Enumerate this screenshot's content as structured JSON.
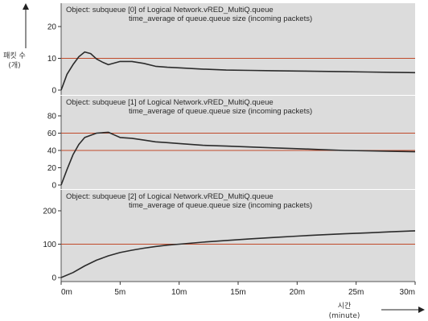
{
  "chart_data": {
    "type": "line",
    "y_axis_label": [
      "패킷 수",
      "(개)"
    ],
    "x_axis_label": [
      "시간",
      "(minute)"
    ],
    "x_ticks": [
      "0m",
      "5m",
      "10m",
      "15m",
      "20m",
      "25m",
      "30m"
    ],
    "xlim": [
      0,
      30
    ],
    "grid": false,
    "colors": {
      "plot_background": "#dcdcdc",
      "line": "#2b2b2b",
      "reference_line": "#c04a2a"
    },
    "panels": [
      {
        "title_lines": [
          "Object: subqueue [0] of Logical Network.vRED_MultiQ.queue",
          "time_average of queue.queue size (incoming packets)"
        ],
        "ylim": [
          0,
          20
        ],
        "y_ticks": [
          0,
          10,
          20
        ],
        "reference_lines": [
          10
        ],
        "series": [
          {
            "x": [
              0,
              0.5,
              1,
              1.5,
              2,
              2.5,
              3,
              3.5,
              4,
              4.5,
              5,
              6,
              7,
              8,
              9,
              10,
              12,
              14,
              16,
              18,
              20,
              22,
              24,
              26,
              28,
              30
            ],
            "y": [
              0,
              5,
              8,
              10.5,
              12,
              11.5,
              9.8,
              8.8,
              8,
              8.5,
              9,
              9,
              8.4,
              7.5,
              7.2,
              7,
              6.6,
              6.3,
              6.2,
              6.1,
              6,
              5.9,
              5.8,
              5.7,
              5.6,
              5.5
            ]
          }
        ]
      },
      {
        "title_lines": [
          "Object: subqueue [1] of Logical Network.vRED_MultiQ.queue",
          "time_average of queue.queue size (incoming packets)"
        ],
        "ylim": [
          0,
          80
        ],
        "y_ticks": [
          0,
          20,
          40,
          60,
          80
        ],
        "reference_lines": [
          40,
          60
        ],
        "series": [
          {
            "x": [
              0,
              0.5,
              1,
              1.5,
              2,
              3,
              4,
              4.5,
              5,
              6,
              7,
              8,
              9,
              10,
              12,
              14,
              16,
              18,
              20,
              22,
              24,
              26,
              28,
              30
            ],
            "y": [
              0,
              18,
              35,
              47,
              55,
              60,
              61,
              58,
              55,
              54,
              52,
              50,
              49,
              48,
              46,
              45,
              44,
              43,
              42,
              41,
              40,
              39.5,
              39,
              38.5
            ]
          }
        ]
      },
      {
        "title_lines": [
          "Object: subqueue [2] of Logical Network.vRED_MultiQ.queue",
          "time_average of queue.queue size (incoming packets)"
        ],
        "ylim": [
          0,
          200
        ],
        "y_ticks": [
          0,
          100,
          200
        ],
        "reference_lines": [
          100
        ],
        "series": [
          {
            "x": [
              0,
              1,
              2,
              3,
              4,
              5,
              6,
              7,
              8,
              9,
              10,
              12,
              14,
              16,
              18,
              20,
              22,
              24,
              26,
              28,
              30
            ],
            "y": [
              0,
              15,
              35,
              52,
              65,
              75,
              82,
              88,
              93,
              97,
              100,
              106,
              111,
              116,
              120,
              124,
              128,
              131,
              134,
              137,
              140
            ]
          }
        ]
      }
    ]
  }
}
